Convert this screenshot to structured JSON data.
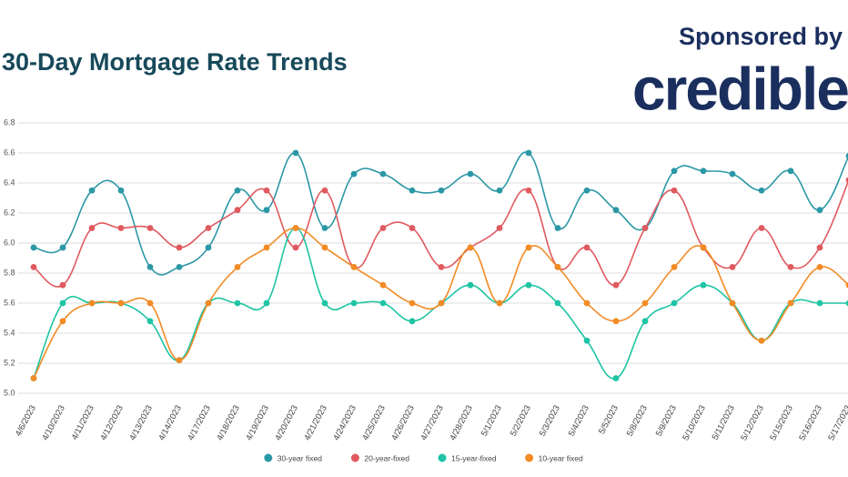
{
  "sponsor": {
    "label": "Sponsored by",
    "brand": "credible"
  },
  "chart_data": {
    "type": "line",
    "title": "30-Day Mortgage Rate Trends",
    "categories": [
      "4/6/2023",
      "4/10/2023",
      "4/11/2023",
      "4/12/2023",
      "4/13/2023",
      "4/14/2023",
      "4/17/2023",
      "4/18/2023",
      "4/19/2023",
      "4/20/2023",
      "4/21/2023",
      "4/24/2023",
      "4/25/2023",
      "4/26/2023",
      "4/27/2023",
      "4/28/2023",
      "5/1/2023",
      "5/2/2023",
      "5/3/2023",
      "5/4/2023",
      "5/52023",
      "5/8/2023",
      "5/9/2023",
      "5/10/2023",
      "5/11/2023",
      "5/12/2023",
      "5/15/2023",
      "5/16/2023",
      "5/17/2023"
    ],
    "series": [
      {
        "name": "30-year fixed",
        "color": "#2b98a6",
        "values": [
          5.97,
          5.97,
          6.35,
          6.35,
          5.84,
          5.84,
          5.97,
          6.35,
          6.22,
          6.6,
          6.1,
          6.46,
          6.46,
          6.35,
          6.35,
          6.46,
          6.35,
          6.6,
          6.1,
          6.35,
          6.22,
          6.1,
          6.48,
          6.48,
          6.46,
          6.35,
          6.48,
          6.22,
          6.58
        ]
      },
      {
        "name": "20-year-fixed",
        "color": "#e05a5f",
        "values": [
          5.84,
          5.72,
          6.1,
          6.1,
          6.1,
          5.97,
          6.1,
          6.22,
          6.35,
          5.97,
          6.35,
          5.84,
          6.1,
          6.1,
          5.84,
          5.97,
          6.1,
          6.35,
          5.84,
          5.97,
          5.72,
          6.1,
          6.35,
          5.97,
          5.84,
          6.1,
          5.84,
          5.97,
          6.42
        ]
      },
      {
        "name": "15-year-fixed",
        "color": "#1ec4a4",
        "values": [
          5.1,
          5.6,
          5.6,
          5.6,
          5.48,
          5.22,
          5.6,
          5.6,
          5.6,
          6.1,
          5.6,
          5.6,
          5.6,
          5.48,
          5.6,
          5.72,
          5.6,
          5.72,
          5.6,
          5.35,
          5.1,
          5.48,
          5.6,
          5.72,
          5.6,
          5.35,
          5.6,
          5.6,
          5.6
        ]
      },
      {
        "name": "10-year fixed",
        "color": "#f28b24",
        "values": [
          5.1,
          5.48,
          5.6,
          5.6,
          5.6,
          5.22,
          5.6,
          5.84,
          5.97,
          6.1,
          5.97,
          5.84,
          5.72,
          5.6,
          5.6,
          5.97,
          5.6,
          5.97,
          5.84,
          5.6,
          5.48,
          5.6,
          5.84,
          5.97,
          5.6,
          5.35,
          5.6,
          5.84,
          5.72
        ]
      }
    ],
    "ylim": [
      5.0,
      6.8
    ],
    "yticks": [
      {
        "value": 5.0,
        "label": "5.0"
      },
      5.2,
      5.4,
      5.6,
      5.8,
      {
        "value": 6.0,
        "label": "6.0"
      },
      6.2,
      6.4,
      6.6,
      6.8
    ],
    "grid": true
  }
}
